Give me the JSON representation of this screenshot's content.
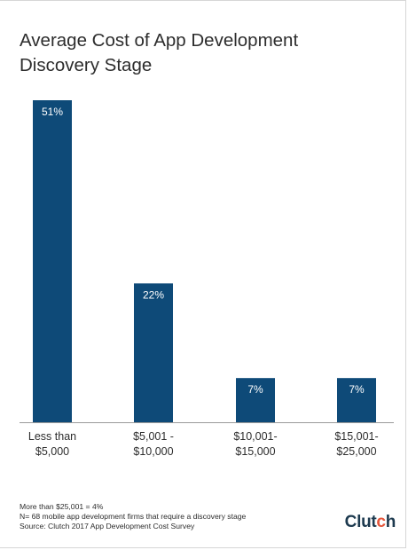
{
  "chart_data": {
    "type": "bar",
    "title": [
      "Average Cost of App Development",
      "Discovery Stage"
    ],
    "categories": [
      [
        "Less than",
        "$5,000"
      ],
      [
        "$5,001 -",
        "$10,000"
      ],
      [
        "$10,001-",
        "$15,000"
      ],
      [
        "$15,001-",
        "$25,000"
      ]
    ],
    "values": [
      51,
      22,
      7,
      7
    ],
    "value_labels": [
      "51%",
      "22%",
      "7%",
      "7%"
    ],
    "unit": "%",
    "ylim": [
      0,
      51
    ],
    "grid": false,
    "bar_color": "#0e4a78"
  },
  "footnotes": [
    "More than $25,001 = 4%",
    "N= 68 mobile app development firms that require a discovery stage",
    "Source: Clutch 2017 App Development Cost Survey"
  ],
  "logo": {
    "text_main": "Clut",
    "text_accent": "c",
    "text_tail": "h",
    "brand_color": "#1d3a4f",
    "accent_color": "#e5563b"
  }
}
